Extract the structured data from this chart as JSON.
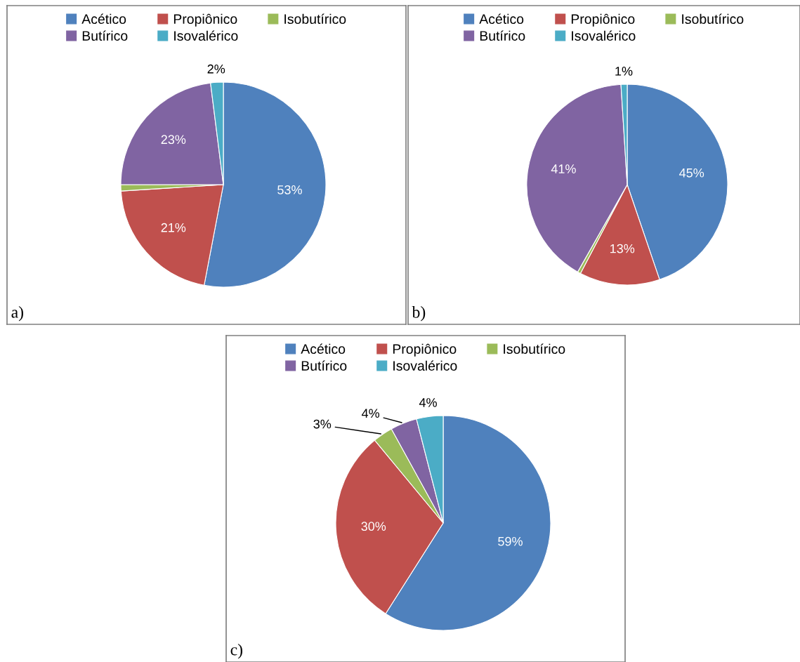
{
  "chart_data": [
    {
      "type": "pie",
      "categories": [
        "Acético",
        "Propiônico",
        "Isobutírico",
        "Butírico",
        "Isovalérico"
      ],
      "values": [
        53,
        21,
        1,
        23,
        2
      ],
      "value_labels": [
        "53%",
        "21%",
        null,
        "23%",
        "2%"
      ],
      "colors": [
        "#4f81bd",
        "#c0504d",
        "#9bbb59",
        "#8064a2",
        "#4bacc6"
      ],
      "legend": "top",
      "annotations": [
        "a)"
      ]
    },
    {
      "type": "pie",
      "categories": [
        "Acético",
        "Propiônico",
        "Isobutírico",
        "Butírico",
        "Isovalérico"
      ],
      "values": [
        45,
        13,
        0.5,
        41,
        1
      ],
      "value_labels": [
        "45%",
        "13%",
        null,
        "41%",
        "1%"
      ],
      "colors": [
        "#4f81bd",
        "#c0504d",
        "#9bbb59",
        "#8064a2",
        "#4bacc6"
      ],
      "legend": "top",
      "annotations": [
        "b)"
      ]
    },
    {
      "type": "pie",
      "categories": [
        "Acético",
        "Propiônico",
        "Isobutírico",
        "Butírico",
        "Isovalérico"
      ],
      "values": [
        59,
        30,
        3,
        4,
        4
      ],
      "value_labels": [
        "59%",
        "30%",
        "3%",
        "4%",
        "4%"
      ],
      "colors": [
        "#4f81bd",
        "#c0504d",
        "#9bbb59",
        "#8064a2",
        "#4bacc6"
      ],
      "legend": "top",
      "annotations": [
        "c)"
      ]
    }
  ]
}
